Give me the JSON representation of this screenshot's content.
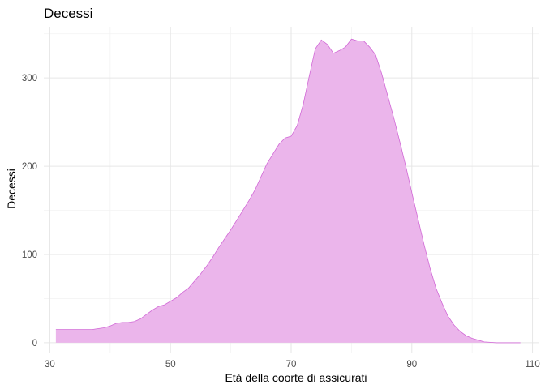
{
  "chart_data": {
    "type": "area",
    "title": "Decessi",
    "xlabel": "Età della coorte di assicurati",
    "ylabel": "Decessi",
    "xlim": [
      29,
      111
    ],
    "ylim": [
      -12,
      358
    ],
    "xticks": [
      30,
      50,
      70,
      90,
      110
    ],
    "yticks": [
      0,
      100,
      200,
      300
    ],
    "grid": true,
    "legend": "none",
    "fill_color": "#ebb5eb",
    "line_color": "#d169d6",
    "series": [
      {
        "x": [
          31,
          33,
          35,
          37,
          38,
          39,
          40,
          41,
          42,
          43,
          44,
          45,
          46,
          47,
          48,
          49,
          50,
          51,
          52,
          53,
          54,
          55,
          56,
          57,
          58,
          59,
          60,
          61,
          62,
          63,
          64,
          65,
          66,
          67,
          68,
          69,
          70,
          71,
          72,
          73,
          74,
          75,
          76,
          77,
          78,
          79,
          80,
          81,
          82,
          83,
          84,
          85,
          86,
          87,
          88,
          89,
          90,
          91,
          92,
          93,
          94,
          95,
          96,
          97,
          98,
          99,
          100,
          101,
          102,
          103,
          104,
          105,
          106,
          107,
          108
        ],
        "y": [
          15,
          15,
          15,
          15,
          16,
          17,
          19,
          22,
          23,
          23,
          24,
          27,
          32,
          37,
          41,
          43,
          47,
          51,
          57,
          62,
          70,
          78,
          87,
          97,
          108,
          118,
          128,
          139,
          150,
          161,
          173,
          188,
          203,
          214,
          225,
          232,
          234,
          246,
          270,
          302,
          333,
          343,
          338,
          328,
          331,
          335,
          344,
          342,
          342,
          335,
          326,
          305,
          280,
          255,
          228,
          200,
          170,
          141,
          112,
          85,
          62,
          45,
          30,
          20,
          13,
          8,
          5,
          3,
          1,
          0.5,
          0,
          0,
          0,
          0,
          0
        ]
      }
    ]
  }
}
